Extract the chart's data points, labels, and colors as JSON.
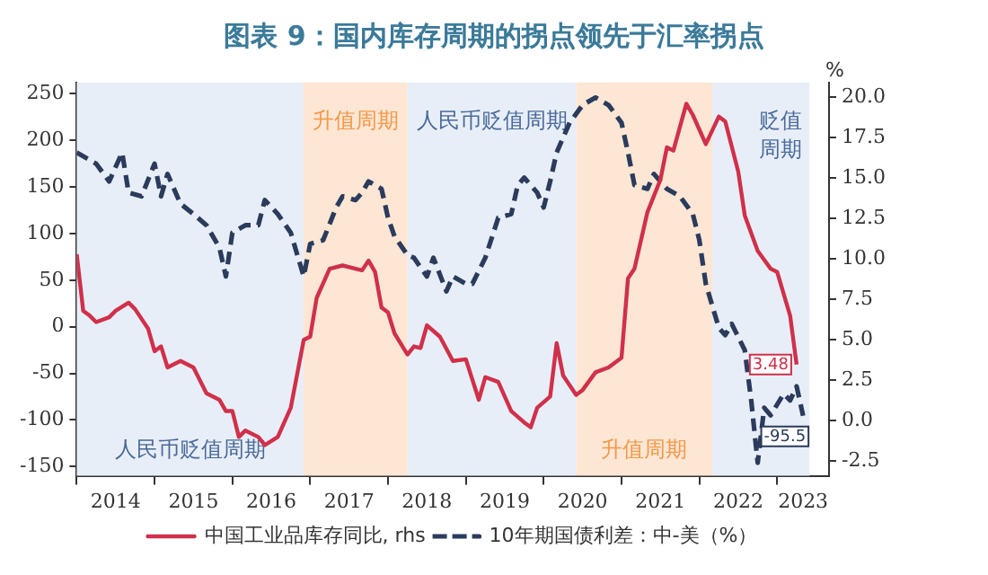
{
  "chart_data": {
    "type": "line",
    "title": "图表 9：国内库存周期的拐点领先于汇率拐点",
    "y2label": "%",
    "xlim": [
      "2014-01",
      "2023-09"
    ],
    "xticks": [
      {
        "value": "2014-01",
        "label": null
      },
      {
        "value": "2014-07",
        "label": "2014"
      },
      {
        "value": "2015-01",
        "label": null
      },
      {
        "value": "2015-07",
        "label": "2015"
      },
      {
        "value": "2016-01",
        "label": null
      },
      {
        "value": "2016-07",
        "label": "2016"
      },
      {
        "value": "2017-01",
        "label": null
      },
      {
        "value": "2017-07",
        "label": "2017"
      },
      {
        "value": "2018-01",
        "label": null
      },
      {
        "value": "2018-07",
        "label": "2018"
      },
      {
        "value": "2019-01",
        "label": null
      },
      {
        "value": "2019-07",
        "label": "2019"
      },
      {
        "value": "2020-01",
        "label": null
      },
      {
        "value": "2020-07",
        "label": "2020"
      },
      {
        "value": "2021-01",
        "label": null
      },
      {
        "value": "2021-07",
        "label": "2021"
      },
      {
        "value": "2022-01",
        "label": null
      },
      {
        "value": "2022-07",
        "label": "2022"
      },
      {
        "value": "2023-01",
        "label": null
      },
      {
        "value": "2023-05",
        "label": "2023"
      }
    ],
    "ylim": [
      -160,
      262
    ],
    "yticks": [
      -150,
      -100,
      -50,
      0,
      50,
      100,
      150,
      200,
      250
    ],
    "y2lim": [
      -3.4,
      20.9
    ],
    "y2ticks": [
      {
        "value": -2.5,
        "label": "-2.5"
      },
      {
        "value": 0,
        "label": "0.0"
      },
      {
        "value": 2.5,
        "label": "2.5"
      },
      {
        "value": 5,
        "label": "5.0"
      },
      {
        "value": 7.5,
        "label": "7.5"
      },
      {
        "value": 10,
        "label": "10.0"
      },
      {
        "value": 12.5,
        "label": "12.5"
      },
      {
        "value": 15,
        "label": "15.0"
      },
      {
        "value": 17.5,
        "label": "17.5"
      },
      {
        "value": 20,
        "label": "20.0"
      }
    ],
    "grid": false,
    "legend": "bottom",
    "marker": "none",
    "bands": [
      {
        "axis": "x",
        "from": "2014-01",
        "to": "2016-12",
        "label": "人民币贬值周期",
        "color": "#e8eef7"
      },
      {
        "axis": "x",
        "from": "2016-12",
        "to": "2018-04",
        "label": "升值周期",
        "color": "#fde6d4"
      },
      {
        "axis": "x",
        "from": "2018-04",
        "to": "2020-06",
        "label": "人民币贬值周期",
        "color": "#e8eef7"
      },
      {
        "axis": "x",
        "from": "2020-06",
        "to": "2022-03",
        "label": "升值周期",
        "color": "#fde6d4"
      },
      {
        "axis": "x",
        "from": "2022-03",
        "to": "2023-06",
        "label": "贬值周期",
        "color": "#e8eef7"
      }
    ],
    "series": [
      {
        "name": "中国工业品库存同比, rhs",
        "color": "#d0304a",
        "axis": "y2",
        "line_style": "solid",
        "x": [
          "2014-01",
          "2014-02",
          "2014-03",
          "2014-04",
          "2014-06",
          "2014-07",
          "2014-09",
          "2014-10",
          "2014-12",
          "2015-01",
          "2015-02",
          "2015-03",
          "2015-05",
          "2015-07",
          "2015-09",
          "2015-11",
          "2015-12",
          "2016-01",
          "2016-02",
          "2016-03",
          "2016-05",
          "2016-06",
          "2016-08",
          "2016-10",
          "2016-12",
          "2017-01",
          "2017-02",
          "2017-04",
          "2017-06",
          "2017-08",
          "2017-09",
          "2017-10",
          "2017-11",
          "2017-12",
          "2018-01",
          "2018-02",
          "2018-04",
          "2018-05",
          "2018-06",
          "2018-07",
          "2018-09",
          "2018-11",
          "2019-01",
          "2019-03",
          "2019-04",
          "2019-06",
          "2019-08",
          "2019-10",
          "2019-11",
          "2019-12",
          "2020-02",
          "2020-03",
          "2020-04",
          "2020-06",
          "2020-07",
          "2020-09",
          "2020-11",
          "2021-01",
          "2021-02",
          "2021-03",
          "2021-05",
          "2021-07",
          "2021-08",
          "2021-09",
          "2021-11",
          "2021-12",
          "2022-02",
          "2022-04",
          "2022-05",
          "2022-07",
          "2022-08",
          "2022-10",
          "2022-12",
          "2023-01",
          "2023-03",
          "2023-04"
        ],
        "values": [
          10.3,
          6.8,
          6.5,
          6.1,
          6.4,
          6.8,
          7.3,
          6.9,
          5.7,
          4.3,
          4.6,
          3.3,
          3.7,
          3.3,
          1.7,
          1.3,
          0.6,
          0.6,
          -1.0,
          -0.6,
          -1.0,
          -1.5,
          -1.0,
          0.8,
          5.0,
          5.2,
          7.6,
          9.4,
          9.6,
          9.4,
          9.3,
          9.9,
          9.2,
          7.0,
          6.7,
          5.4,
          4.1,
          4.6,
          4.5,
          5.9,
          5.2,
          3.7,
          3.8,
          1.3,
          2.7,
          2.4,
          0.6,
          -0.1,
          -0.4,
          0.8,
          1.5,
          4.8,
          2.8,
          1.6,
          1.9,
          3.0,
          3.3,
          3.9,
          8.8,
          9.4,
          12.9,
          14.9,
          16.9,
          16.7,
          19.6,
          18.9,
          17.1,
          18.8,
          18.5,
          15.4,
          12.7,
          10.5,
          9.4,
          9.2,
          6.5,
          3.48
        ],
        "value_labels": [
          null,
          null,
          null,
          null,
          null,
          null,
          null,
          null,
          null,
          null,
          null,
          null,
          null,
          null,
          null,
          null,
          null,
          null,
          null,
          null,
          null,
          null,
          null,
          null,
          null,
          null,
          null,
          null,
          null,
          null,
          null,
          null,
          null,
          null,
          null,
          null,
          null,
          null,
          null,
          null,
          null,
          null,
          null,
          null,
          null,
          null,
          null,
          null,
          null,
          null,
          null,
          null,
          null,
          null,
          null,
          null,
          null,
          null,
          null,
          null,
          null,
          null,
          null,
          null,
          null,
          null,
          null,
          null,
          null,
          null,
          null,
          null,
          null,
          null,
          null,
          "3.48"
        ]
      },
      {
        "name": "10年期国债利差：中-美（%）",
        "color": "#2b3b5c",
        "axis": "y",
        "line_style": "dashed",
        "x": [
          "2014-01",
          "2014-04",
          "2014-06",
          "2014-08",
          "2014-09",
          "2014-11",
          "2015-01",
          "2015-02",
          "2015-03",
          "2015-05",
          "2015-07",
          "2015-09",
          "2015-11",
          "2015-12",
          "2016-01",
          "2016-03",
          "2016-05",
          "2016-06",
          "2016-08",
          "2016-10",
          "2016-12",
          "2017-01",
          "2017-03",
          "2017-05",
          "2017-06",
          "2017-08",
          "2017-09",
          "2017-10",
          "2017-12",
          "2018-01",
          "2018-02",
          "2018-04",
          "2018-05",
          "2018-07",
          "2018-08",
          "2018-10",
          "2018-11",
          "2019-01",
          "2019-02",
          "2019-04",
          "2019-06",
          "2019-08",
          "2019-09",
          "2019-10",
          "2019-12",
          "2020-01",
          "2020-02",
          "2020-03",
          "2020-05",
          "2020-07",
          "2020-09",
          "2020-11",
          "2021-01",
          "2021-02",
          "2021-03",
          "2021-05",
          "2021-06",
          "2021-08",
          "2021-10",
          "2021-12",
          "2022-01",
          "2022-02",
          "2022-04",
          "2022-05",
          "2022-06",
          "2022-08",
          "2022-09",
          "2022-10",
          "2022-11",
          "2022-12",
          "2023-02",
          "2023-03",
          "2023-04",
          "2023-05"
        ],
        "values": [
          187,
          175,
          156,
          187,
          144,
          140,
          175,
          140,
          164,
          132,
          121,
          109,
          85,
          54,
          101,
          109,
          109,
          136,
          121,
          101,
          54,
          89,
          93,
          128,
          140,
          136,
          144,
          156,
          148,
          117,
          97,
          77,
          74,
          54,
          74,
          38,
          54,
          46,
          46,
          74,
          117,
          121,
          152,
          160,
          144,
          128,
          156,
          187,
          219,
          238,
          246,
          238,
          219,
          187,
          152,
          148,
          164,
          148,
          140,
          121,
          93,
          46,
          -1,
          -9,
          3,
          -25,
          -79,
          -146,
          -87,
          -95,
          -72,
          -79,
          -64,
          -95.5
        ],
        "value_labels": [
          null,
          null,
          null,
          null,
          null,
          null,
          null,
          null,
          null,
          null,
          null,
          null,
          null,
          null,
          null,
          null,
          null,
          null,
          null,
          null,
          null,
          null,
          null,
          null,
          null,
          null,
          null,
          null,
          null,
          null,
          null,
          null,
          null,
          null,
          null,
          null,
          null,
          null,
          null,
          null,
          null,
          null,
          null,
          null,
          null,
          null,
          null,
          null,
          null,
          null,
          null,
          null,
          null,
          null,
          null,
          null,
          null,
          null,
          null,
          null,
          null,
          null,
          null,
          null,
          null,
          null,
          null,
          null,
          null,
          null,
          null,
          null,
          null,
          "-95.5"
        ]
      }
    ]
  }
}
